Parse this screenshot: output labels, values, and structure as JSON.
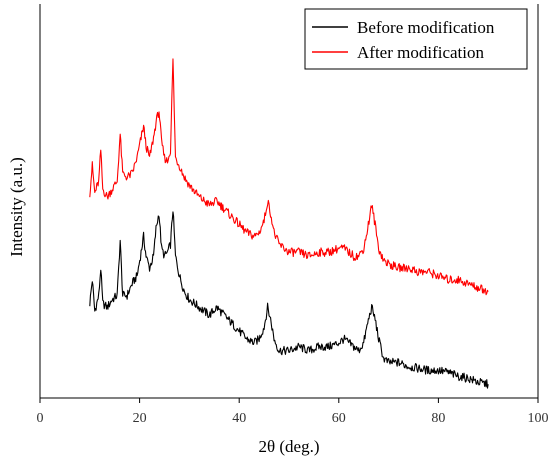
{
  "chart_data": {
    "type": "line",
    "title": "",
    "xlabel": "2θ (deg.)",
    "ylabel": "Intensity (a.u.)",
    "xlim": [
      0,
      100
    ],
    "xticks": [
      0,
      20,
      40,
      60,
      80,
      100
    ],
    "ylim": [
      0,
      10
    ],
    "yticks_labeled": false,
    "grid": false,
    "legend_position": "top-right",
    "series": [
      {
        "name": "Before modification",
        "color": "#000000",
        "points": [
          [
            10,
            2.4
          ],
          [
            10.5,
            3.0
          ],
          [
            11,
            2.2
          ],
          [
            11.8,
            2.6
          ],
          [
            12.2,
            3.3
          ],
          [
            12.6,
            2.4
          ],
          [
            13.5,
            2.3
          ],
          [
            14.5,
            2.5
          ],
          [
            15.5,
            2.6
          ],
          [
            16.1,
            4.0
          ],
          [
            16.6,
            2.6
          ],
          [
            17.5,
            2.6
          ],
          [
            18.5,
            2.9
          ],
          [
            19.5,
            3.1
          ],
          [
            20.3,
            3.7
          ],
          [
            20.8,
            4.1
          ],
          [
            21.3,
            3.6
          ],
          [
            22,
            3.3
          ],
          [
            22.8,
            3.6
          ],
          [
            23.3,
            4.3
          ],
          [
            23.9,
            4.7
          ],
          [
            24.4,
            3.8
          ],
          [
            25,
            3.6
          ],
          [
            25.6,
            3.7
          ],
          [
            26.2,
            3.9
          ],
          [
            26.7,
            4.8
          ],
          [
            27.2,
            3.6
          ],
          [
            28,
            3.1
          ],
          [
            29,
            2.7
          ],
          [
            30,
            2.5
          ],
          [
            32,
            2.3
          ],
          [
            34,
            2.1
          ],
          [
            35.5,
            2.3
          ],
          [
            37,
            2.1
          ],
          [
            38.5,
            1.9
          ],
          [
            40,
            1.7
          ],
          [
            41.5,
            1.5
          ],
          [
            43,
            1.4
          ],
          [
            44,
            1.5
          ],
          [
            45,
            1.8
          ],
          [
            45.7,
            2.3
          ],
          [
            46.3,
            2.0
          ],
          [
            47,
            1.5
          ],
          [
            48,
            1.2
          ],
          [
            49,
            1.2
          ],
          [
            50,
            1.2
          ],
          [
            52,
            1.3
          ],
          [
            54,
            1.2
          ],
          [
            56,
            1.3
          ],
          [
            58,
            1.3
          ],
          [
            60,
            1.4
          ],
          [
            61,
            1.5
          ],
          [
            62,
            1.4
          ],
          [
            63,
            1.3
          ],
          [
            64,
            1.2
          ],
          [
            65,
            1.4
          ],
          [
            65.8,
            1.9
          ],
          [
            66.6,
            2.3
          ],
          [
            67.3,
            2.0
          ],
          [
            68,
            1.5
          ],
          [
            69,
            1.0
          ],
          [
            70,
            0.9
          ],
          [
            72,
            0.9
          ],
          [
            74,
            0.8
          ],
          [
            76,
            0.75
          ],
          [
            78,
            0.7
          ],
          [
            80,
            0.7
          ],
          [
            82,
            0.65
          ],
          [
            84,
            0.55
          ],
          [
            86,
            0.5
          ],
          [
            88,
            0.4
          ],
          [
            90,
            0.35
          ]
        ]
      },
      {
        "name": "After modification",
        "color": "#ff0000",
        "points": [
          [
            10,
            5.2
          ],
          [
            10.5,
            5.9
          ],
          [
            11,
            5.2
          ],
          [
            11.8,
            5.5
          ],
          [
            12.2,
            6.3
          ],
          [
            12.6,
            5.3
          ],
          [
            13.5,
            5.1
          ],
          [
            14.5,
            5.3
          ],
          [
            15.5,
            5.5
          ],
          [
            16.1,
            6.7
          ],
          [
            16.6,
            5.7
          ],
          [
            17.5,
            5.6
          ],
          [
            18.5,
            5.7
          ],
          [
            19.5,
            6.1
          ],
          [
            20.3,
            6.6
          ],
          [
            20.8,
            6.9
          ],
          [
            21.3,
            6.4
          ],
          [
            22,
            6.1
          ],
          [
            22.8,
            6.6
          ],
          [
            23.3,
            7.0
          ],
          [
            23.9,
            7.3
          ],
          [
            24.4,
            6.5
          ],
          [
            25,
            6.1
          ],
          [
            25.6,
            6.0
          ],
          [
            26.2,
            6.3
          ],
          [
            26.7,
            8.6
          ],
          [
            27.2,
            6.1
          ],
          [
            28,
            5.9
          ],
          [
            29,
            5.6
          ],
          [
            30,
            5.4
          ],
          [
            32,
            5.1
          ],
          [
            34,
            4.9
          ],
          [
            35.5,
            5.0
          ],
          [
            37,
            4.8
          ],
          [
            38.5,
            4.6
          ],
          [
            40,
            4.4
          ],
          [
            41.5,
            4.2
          ],
          [
            43,
            4.1
          ],
          [
            44,
            4.2
          ],
          [
            45,
            4.5
          ],
          [
            45.7,
            5.0
          ],
          [
            46.3,
            4.7
          ],
          [
            47,
            4.2
          ],
          [
            48,
            3.9
          ],
          [
            49,
            3.8
          ],
          [
            50,
            3.7
          ],
          [
            52,
            3.7
          ],
          [
            54,
            3.6
          ],
          [
            56,
            3.7
          ],
          [
            58,
            3.7
          ],
          [
            60,
            3.8
          ],
          [
            61,
            3.8
          ],
          [
            62,
            3.7
          ],
          [
            63,
            3.6
          ],
          [
            64,
            3.6
          ],
          [
            65,
            3.8
          ],
          [
            65.8,
            4.3
          ],
          [
            66.6,
            4.9
          ],
          [
            67.3,
            4.4
          ],
          [
            68,
            3.8
          ],
          [
            69,
            3.5
          ],
          [
            70,
            3.4
          ],
          [
            72,
            3.3
          ],
          [
            74,
            3.3
          ],
          [
            76,
            3.2
          ],
          [
            78,
            3.2
          ],
          [
            80,
            3.1
          ],
          [
            82,
            3.0
          ],
          [
            84,
            3.0
          ],
          [
            86,
            2.9
          ],
          [
            88,
            2.8
          ],
          [
            90,
            2.7
          ]
        ]
      }
    ]
  }
}
